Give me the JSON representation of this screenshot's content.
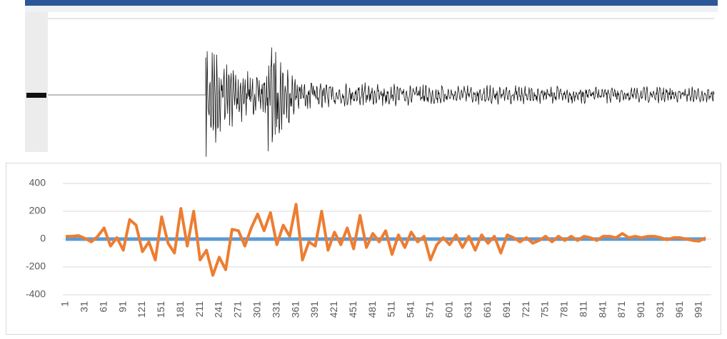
{
  "chart_data": {
    "type": "line",
    "x": [
      1,
      11,
      21,
      31,
      41,
      51,
      61,
      71,
      81,
      91,
      101,
      111,
      121,
      131,
      141,
      151,
      161,
      171,
      181,
      191,
      201,
      211,
      221,
      231,
      241,
      251,
      261,
      271,
      281,
      291,
      301,
      311,
      321,
      331,
      341,
      351,
      361,
      371,
      381,
      391,
      401,
      411,
      421,
      431,
      441,
      451,
      461,
      471,
      481,
      491,
      501,
      511,
      521,
      531,
      541,
      551,
      561,
      571,
      581,
      591,
      601,
      611,
      621,
      631,
      641,
      651,
      661,
      671,
      681,
      691,
      701,
      711,
      721,
      731,
      741,
      751,
      761,
      771,
      781,
      791,
      801,
      811,
      821,
      831,
      841,
      851,
      861,
      871,
      881,
      891,
      901,
      911,
      921,
      931,
      941,
      951,
      961,
      971,
      981,
      991,
      1001
    ],
    "series": [
      {
        "color": "#5b9bd5",
        "values": [
          0,
          0,
          0,
          0,
          0,
          0,
          0,
          0,
          0,
          0,
          0,
          0,
          0,
          0,
          0,
          0,
          0,
          0,
          0,
          0,
          0,
          0,
          0,
          0,
          0,
          0,
          0,
          0,
          0,
          0,
          0,
          0,
          0,
          0,
          0,
          0,
          0,
          0,
          0,
          0,
          0,
          0,
          0,
          0,
          0,
          0,
          0,
          0,
          0,
          0,
          0,
          0,
          0,
          0,
          0,
          0,
          0,
          0,
          0,
          0,
          0,
          0,
          0,
          0,
          0,
          0,
          0,
          0,
          0,
          0,
          0,
          0,
          0,
          0,
          0,
          0,
          0,
          0,
          0,
          0,
          0,
          0,
          0,
          0,
          0,
          0,
          0,
          0,
          0,
          0,
          0,
          0,
          0,
          0,
          0,
          0,
          0,
          0,
          0,
          0,
          0
        ]
      },
      {
        "color": "#ed7d31",
        "values": [
          20,
          20,
          25,
          5,
          -20,
          20,
          80,
          -50,
          10,
          -80,
          140,
          100,
          -90,
          -20,
          -150,
          160,
          -30,
          -100,
          220,
          -50,
          200,
          -150,
          -80,
          -260,
          -130,
          -220,
          70,
          60,
          -50,
          80,
          180,
          60,
          190,
          -40,
          100,
          20,
          250,
          -150,
          -20,
          -50,
          200,
          -80,
          50,
          -40,
          80,
          -70,
          170,
          -60,
          40,
          -20,
          60,
          -110,
          30,
          -60,
          50,
          -20,
          20,
          -150,
          -40,
          10,
          -40,
          30,
          -60,
          20,
          -80,
          30,
          -30,
          20,
          -100,
          30,
          10,
          -20,
          10,
          -30,
          -10,
          20,
          -20,
          20,
          -10,
          20,
          -10,
          20,
          10,
          -10,
          20,
          20,
          10,
          40,
          10,
          20,
          10,
          20,
          20,
          10,
          -5,
          10,
          10,
          0,
          -10,
          -15,
          10
        ]
      }
    ],
    "xlim": [
      1,
      1001
    ],
    "xticks": [
      1,
      31,
      61,
      91,
      121,
      151,
      181,
      211,
      241,
      271,
      301,
      331,
      361,
      391,
      421,
      451,
      481,
      511,
      541,
      571,
      601,
      631,
      661,
      691,
      721,
      751,
      781,
      811,
      841,
      871,
      901,
      931,
      961,
      991
    ],
    "ylim": [
      -400,
      400
    ],
    "yticks": [
      400,
      200,
      0,
      -200,
      -400
    ],
    "grid": true
  }
}
